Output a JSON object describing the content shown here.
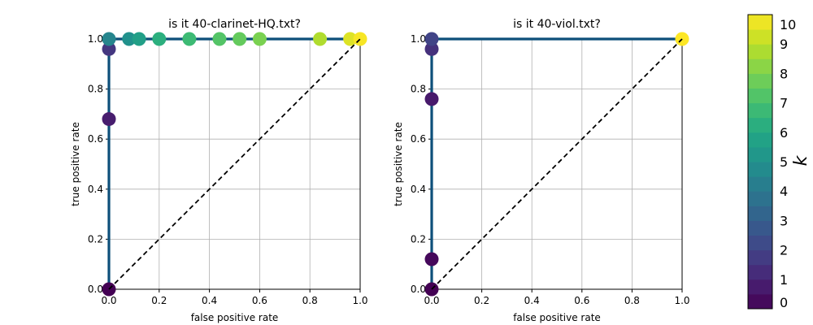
{
  "chart_data": [
    {
      "type": "line",
      "title": "is it 40-clarinet-HQ.txt?",
      "xlabel": "false positive rate",
      "ylabel": "true positive rate",
      "xlim": [
        0,
        1
      ],
      "ylim": [
        0,
        1
      ],
      "grid": true,
      "xticks": [
        "0.0",
        "0.2",
        "0.4",
        "0.6",
        "0.8",
        "1.0"
      ],
      "yticks": [
        "0.0",
        "0.2",
        "0.4",
        "0.6",
        "0.8",
        "1.0"
      ],
      "series": [
        {
          "kind": "roc",
          "color": "#0d4f7a",
          "points": [
            {
              "x": 0.0,
              "y": 0.0,
              "k": 0.0
            },
            {
              "x": 0.0,
              "y": 0.68,
              "k": 0.8
            },
            {
              "x": 0.0,
              "y": 0.96,
              "k": 1.6
            },
            {
              "x": 0.0,
              "y": 1.0,
              "k": 4.5
            },
            {
              "x": 0.08,
              "y": 1.0,
              "k": 5.0
            },
            {
              "x": 0.12,
              "y": 1.0,
              "k": 5.6
            },
            {
              "x": 0.2,
              "y": 1.0,
              "k": 6.3
            },
            {
              "x": 0.32,
              "y": 1.0,
              "k": 6.8
            },
            {
              "x": 0.44,
              "y": 1.0,
              "k": 7.3
            },
            {
              "x": 0.52,
              "y": 1.0,
              "k": 7.6
            },
            {
              "x": 0.6,
              "y": 1.0,
              "k": 8.0
            },
            {
              "x": 0.84,
              "y": 1.0,
              "k": 8.8
            },
            {
              "x": 0.96,
              "y": 1.0,
              "k": 9.5
            },
            {
              "x": 1.0,
              "y": 1.0,
              "k": 9.9
            }
          ]
        },
        {
          "kind": "diagonal",
          "color": "#000000",
          "points": [
            {
              "x": 0,
              "y": 0
            },
            {
              "x": 1,
              "y": 1
            }
          ]
        }
      ]
    },
    {
      "type": "line",
      "title": "is it 40-viol.txt?",
      "xlabel": "false positive rate",
      "ylabel": "true positive rate",
      "xlim": [
        0,
        1
      ],
      "ylim": [
        0,
        1
      ],
      "grid": true,
      "xticks": [
        "0.0",
        "0.2",
        "0.4",
        "0.6",
        "0.8",
        "1.0"
      ],
      "yticks": [
        "0.0",
        "0.2",
        "0.4",
        "0.6",
        "0.8",
        "1.0"
      ],
      "series": [
        {
          "kind": "roc",
          "color": "#0d4f7a",
          "points": [
            {
              "x": 0.0,
              "y": 0.0,
              "k": 0.0
            },
            {
              "x": 0.0,
              "y": 0.12,
              "k": 0.2
            },
            {
              "x": 0.0,
              "y": 0.76,
              "k": 0.7
            },
            {
              "x": 0.0,
              "y": 0.96,
              "k": 1.4
            },
            {
              "x": 0.0,
              "y": 1.0,
              "k": 2.0
            },
            {
              "x": 1.0,
              "y": 1.0,
              "k": 10.0
            }
          ]
        },
        {
          "kind": "diagonal",
          "color": "#000000",
          "points": [
            {
              "x": 0,
              "y": 0
            },
            {
              "x": 1,
              "y": 1
            }
          ]
        }
      ]
    }
  ],
  "colorbar": {
    "label": "k",
    "min": 0,
    "max": 10,
    "levels": 20,
    "colormap": "viridis",
    "ticks": [
      "0",
      "1",
      "2",
      "3",
      "4",
      "5",
      "6",
      "7",
      "8",
      "9",
      "10"
    ]
  }
}
